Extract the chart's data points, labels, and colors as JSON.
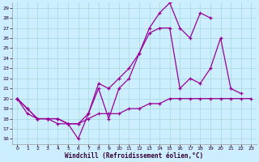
{
  "xlabel": "Windchill (Refroidissement éolien,°C)",
  "bg_color": "#cceeff",
  "grid_color": "#aadddd",
  "line_color": "#990099",
  "xlim": [
    -0.5,
    23.5
  ],
  "ylim": [
    15.5,
    29.5
  ],
  "xticks": [
    0,
    1,
    2,
    3,
    4,
    5,
    6,
    7,
    8,
    9,
    10,
    11,
    12,
    13,
    14,
    15,
    16,
    17,
    18,
    19,
    20,
    21,
    22,
    23
  ],
  "yticks": [
    16,
    17,
    18,
    19,
    20,
    21,
    22,
    23,
    24,
    25,
    26,
    27,
    28,
    29
  ],
  "line1_x": [
    0,
    1,
    2,
    3,
    4,
    5,
    6,
    7,
    8,
    9,
    10,
    11,
    12,
    13,
    14,
    15,
    16,
    17,
    18,
    19,
    20,
    21,
    22,
    23
  ],
  "line1_y": [
    20.0,
    19.0,
    18.0,
    18.0,
    18.0,
    17.5,
    16.0,
    18.5,
    21.0,
    18.0,
    21.0,
    22.0,
    24.5,
    27.0,
    28.5,
    29.5,
    27.0,
    26.0,
    28.5,
    28.0,
    null,
    null,
    null,
    null
  ],
  "line2_x": [
    0,
    1,
    2,
    3,
    4,
    5,
    6,
    7,
    8,
    9,
    10,
    11,
    12,
    13,
    14,
    15,
    16,
    17,
    18,
    19,
    20,
    21,
    22,
    23
  ],
  "line2_y": [
    20.0,
    19.0,
    18.0,
    18.0,
    17.5,
    17.5,
    17.5,
    18.5,
    21.5,
    21.0,
    22.0,
    23.0,
    24.5,
    26.5,
    27.0,
    27.0,
    21.0,
    22.0,
    21.5,
    23.0,
    26.0,
    21.0,
    20.5,
    null
  ],
  "line3_x": [
    0,
    1,
    2,
    3,
    4,
    5,
    6,
    7,
    8,
    9,
    10,
    11,
    12,
    13,
    14,
    15,
    16,
    17,
    18,
    19,
    20,
    21,
    22,
    23
  ],
  "line3_y": [
    20.0,
    18.5,
    18.0,
    18.0,
    18.0,
    17.5,
    17.5,
    18.0,
    18.5,
    18.5,
    18.5,
    19.0,
    19.0,
    19.5,
    19.5,
    20.0,
    20.0,
    20.0,
    20.0,
    20.0,
    20.0,
    20.0,
    20.0,
    20.0
  ]
}
